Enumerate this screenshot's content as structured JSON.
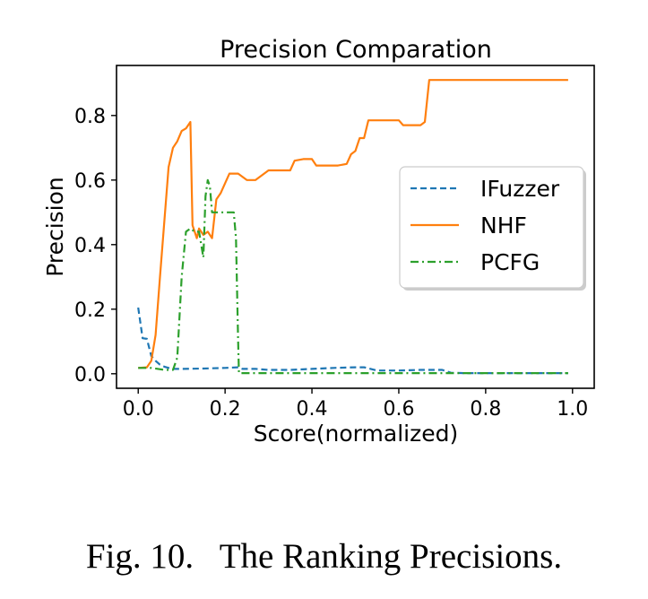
{
  "caption": "Fig. 10.   The Ranking Precisions.",
  "chart_data": {
    "type": "line",
    "title": "Precision Comparation",
    "xlabel": "Score(normalized)",
    "ylabel": "Precision",
    "xlim": [
      -0.05,
      1.05
    ],
    "ylim": [
      -0.045,
      0.955
    ],
    "xticks": [
      0.0,
      0.2,
      0.4,
      0.6,
      0.8,
      1.0
    ],
    "xtick_labels": [
      "0.0",
      "0.2",
      "0.4",
      "0.6",
      "0.8",
      "1.0"
    ],
    "yticks": [
      0.0,
      0.2,
      0.4,
      0.6,
      0.8
    ],
    "ytick_labels": [
      "0.0",
      "0.2",
      "0.4",
      "0.6",
      "0.8"
    ],
    "grid": false,
    "legend_position": "right",
    "series": [
      {
        "name": "IFuzzer",
        "color": "#1f77b4",
        "style": "dashed",
        "x": [
          0.0,
          0.01,
          0.02,
          0.03,
          0.04,
          0.05,
          0.06,
          0.07,
          0.08,
          0.1,
          0.15,
          0.2,
          0.23,
          0.24,
          0.27,
          0.3,
          0.35,
          0.4,
          0.45,
          0.5,
          0.52,
          0.55,
          0.6,
          0.65,
          0.7,
          0.72,
          0.75,
          0.8,
          0.9,
          0.99
        ],
        "y": [
          0.205,
          0.11,
          0.108,
          0.055,
          0.04,
          0.028,
          0.022,
          0.018,
          0.015,
          0.015,
          0.016,
          0.018,
          0.02,
          0.015,
          0.015,
          0.012,
          0.012,
          0.015,
          0.018,
          0.02,
          0.02,
          0.01,
          0.01,
          0.012,
          0.012,
          0.003,
          0.002,
          0.002,
          0.002,
          0.002
        ]
      },
      {
        "name": "NHF",
        "color": "#ff7f0e",
        "style": "solid",
        "x": [
          0.0,
          0.02,
          0.03,
          0.04,
          0.05,
          0.07,
          0.08,
          0.09,
          0.1,
          0.11,
          0.12,
          0.125,
          0.13,
          0.135,
          0.14,
          0.15,
          0.16,
          0.17,
          0.18,
          0.19,
          0.2,
          0.21,
          0.22,
          0.23,
          0.25,
          0.27,
          0.3,
          0.33,
          0.35,
          0.36,
          0.38,
          0.4,
          0.41,
          0.43,
          0.46,
          0.48,
          0.49,
          0.5,
          0.51,
          0.52,
          0.53,
          0.55,
          0.58,
          0.6,
          0.61,
          0.65,
          0.66,
          0.67,
          0.7,
          0.75,
          0.8,
          0.9,
          0.99
        ],
        "y": [
          0.018,
          0.02,
          0.04,
          0.12,
          0.3,
          0.64,
          0.7,
          0.72,
          0.752,
          0.76,
          0.78,
          0.46,
          0.44,
          0.42,
          0.45,
          0.43,
          0.44,
          0.42,
          0.54,
          0.56,
          0.59,
          0.62,
          0.62,
          0.62,
          0.6,
          0.6,
          0.63,
          0.63,
          0.63,
          0.66,
          0.665,
          0.665,
          0.645,
          0.645,
          0.645,
          0.65,
          0.68,
          0.69,
          0.73,
          0.73,
          0.785,
          0.785,
          0.785,
          0.785,
          0.77,
          0.77,
          0.78,
          0.91,
          0.91,
          0.91,
          0.91,
          0.91,
          0.91
        ]
      },
      {
        "name": "PCFG",
        "color": "#2ca02c",
        "style": "dashdot",
        "x": [
          0.0,
          0.03,
          0.06,
          0.08,
          0.09,
          0.1,
          0.11,
          0.12,
          0.13,
          0.14,
          0.15,
          0.155,
          0.16,
          0.165,
          0.17,
          0.18,
          0.19,
          0.2,
          0.22,
          0.225,
          0.23,
          0.232,
          0.24,
          0.3,
          0.4,
          0.5,
          0.6,
          0.7,
          0.8,
          0.9,
          0.99
        ],
        "y": [
          0.018,
          0.018,
          0.012,
          0.012,
          0.05,
          0.3,
          0.44,
          0.45,
          0.44,
          0.44,
          0.36,
          0.55,
          0.6,
          0.58,
          0.5,
          0.5,
          0.5,
          0.5,
          0.5,
          0.42,
          0.1,
          0.002,
          0.002,
          0.002,
          0.002,
          0.002,
          0.002,
          0.002,
          0.002,
          0.002,
          0.002
        ]
      }
    ]
  }
}
